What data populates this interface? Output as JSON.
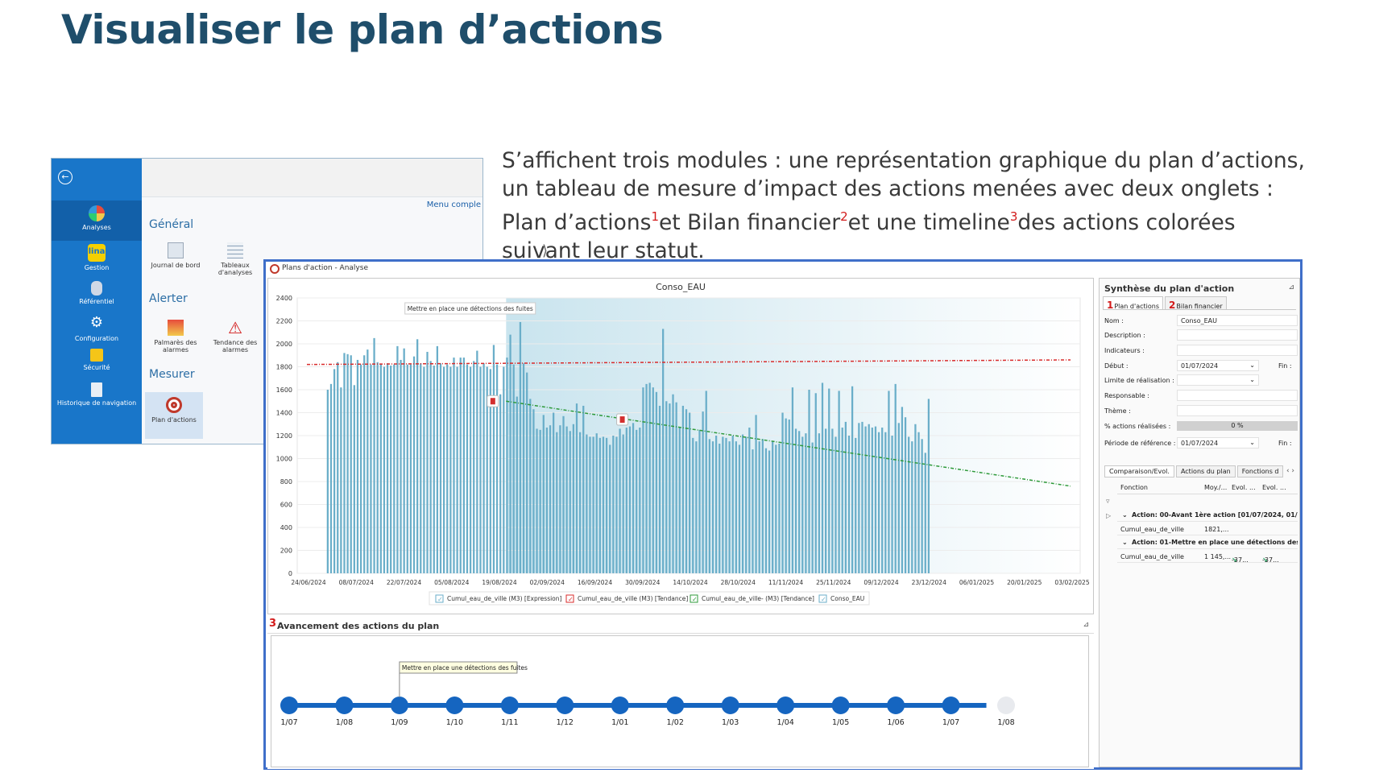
{
  "slide": {
    "title": "Visualiser le plan d’actions",
    "desc_a": "S’affichent trois modules : une représentation graphique du plan d’actions, un tableau de mesure d’impact des actions menées avec deux onglets : Plan d’actions",
    "sup1": "1",
    "desc_b": "et Bilan financier",
    "sup2": "2",
    "desc_c": "et une timeline",
    "sup3": "3",
    "desc_d": "des actions colorées suivant leur statut."
  },
  "nav": {
    "back_icon": "arrow-left-icon",
    "items": [
      {
        "label": "Analyses",
        "color": "#f2c94c"
      },
      {
        "label": "Gestion",
        "color": "#f5d000"
      },
      {
        "label": "Référentiel",
        "color": "#cfd8e6"
      },
      {
        "label": "Configuration",
        "color": "#ffffff"
      },
      {
        "label": "Sécurité",
        "color": "#f5c518"
      },
      {
        "label": "Historique de navigation",
        "color": "#e8eef5"
      }
    ],
    "menu_link": "Menu comple",
    "sections": {
      "general": "Général",
      "alerter": "Alerter",
      "mesurer": "Mesurer"
    },
    "tiles": {
      "journal": "Journal de bord",
      "tableaux": "Tableaux d'analyses",
      "palmares": "Palmarès des alarmes",
      "tendance": "Tendance des alarmes",
      "plan": "Plan d'actions"
    }
  },
  "app": {
    "window_title": "Plans d'action - Analyse"
  },
  "chart_data": {
    "type": "bar",
    "title": "Conso_EAU",
    "ylim": [
      0,
      2400
    ],
    "yticks": [
      0,
      200,
      400,
      600,
      800,
      1000,
      1200,
      1400,
      1600,
      1800,
      2000,
      2200,
      2400
    ],
    "xticks": [
      "24/06/2024",
      "08/07/2024",
      "22/07/2024",
      "05/08/2024",
      "19/08/2024",
      "02/09/2024",
      "16/09/2024",
      "30/09/2024",
      "14/10/2024",
      "28/10/2024",
      "11/11/2024",
      "25/11/2024",
      "09/12/2024",
      "23/12/2024",
      "06/01/2025",
      "20/01/2025",
      "03/02/2025"
    ],
    "series_values": [
      1600,
      1650,
      1780,
      1840,
      1620,
      1920,
      1910,
      1900,
      1640,
      1860,
      1820,
      1900,
      1950,
      1820,
      2050,
      1840,
      1820,
      1800,
      1830,
      1810,
      1820,
      1980,
      1860,
      1960,
      1820,
      1820,
      1890,
      2040,
      1830,
      1800,
      1930,
      1850,
      1810,
      1980,
      1830,
      1800,
      1820,
      1800,
      1880,
      1800,
      1880,
      1880,
      1820,
      1800,
      1850,
      1940,
      1800,
      1830,
      1800,
      1780,
      1990,
      1820,
      1560,
      1800,
      1880,
      2080,
      1820,
      1540,
      2190,
      1830,
      1750,
      1520,
      1430,
      1260,
      1250,
      1380,
      1270,
      1290,
      1400,
      1230,
      1290,
      1370,
      1280,
      1240,
      1300,
      1480,
      1230,
      1460,
      1210,
      1190,
      1190,
      1220,
      1180,
      1190,
      1180,
      1120,
      1200,
      1190,
      1260,
      1210,
      1270,
      1280,
      1310,
      1250,
      1270,
      1620,
      1650,
      1660,
      1620,
      1580,
      1460,
      2130,
      1500,
      1480,
      1560,
      1490,
      1270,
      1460,
      1430,
      1400,
      1180,
      1150,
      1250,
      1410,
      1590,
      1170,
      1150,
      1200,
      1130,
      1190,
      1180,
      1150,
      1200,
      1150,
      1120,
      1210,
      1190,
      1270,
      1080,
      1380,
      1150,
      1170,
      1090,
      1070,
      1150,
      1120,
      1130,
      1400,
      1350,
      1340,
      1620,
      1260,
      1240,
      1190,
      1220,
      1600,
      1140,
      1570,
      1220,
      1660,
      1260,
      1610,
      1260,
      1190,
      1590,
      1270,
      1320,
      1200,
      1630,
      1180,
      1310,
      1320,
      1280,
      1300,
      1270,
      1280,
      1230,
      1270,
      1230,
      1590,
      1200,
      1650,
      1310,
      1450,
      1360,
      1190,
      1150,
      1300,
      1230,
      1170,
      1050,
      1520
    ],
    "trend_before": {
      "name": "Cumul_eau_de_ville (M3) [Tendance]",
      "start": [
        0,
        1820
      ],
      "end": [
        230,
        1860
      ]
    },
    "trend_after": {
      "name": "Cumul_eau_de_ville- (M3) [Tendance]",
      "start": [
        60,
        1500
      ],
      "end": [
        230,
        760
      ]
    },
    "annotation": "Mettre en place une détections des fuites",
    "legend": [
      "Cumul_eau_de_ville (M3) [Expression]",
      "Cumul_eau_de_ville (M3) [Tendance]",
      "Cumul_eau_de_ville- (M3) [Tendance]",
      "Conso_EAU"
    ],
    "colors": {
      "bar": "#6aaec9",
      "trend_before": "#d92b2b",
      "trend_after": "#2e9a3a",
      "shade": "#c9e4ee"
    }
  },
  "synth": {
    "title": "Synthèse du plan d'action",
    "tab1_num": "1",
    "tab1": "Plan d'actions",
    "tab2_num": "2",
    "tab2": "Bilan financier",
    "fields": {
      "nom_label": "Nom :",
      "nom_value": "Conso_EAU",
      "description_label": "Description :",
      "indicateurs_label": "Indicateurs :",
      "debut_label": "Début :",
      "debut_value": "01/07/2024",
      "fin_label": "Fin :",
      "limite_label": "Limite de réalisation :",
      "responsable_label": "Responsable :",
      "theme_label": "Thème :",
      "pct_label": "% actions réalisées :",
      "pct_value": "0 %",
      "periode_label": "Période de référence :",
      "periode_value": "01/07/2024",
      "fin2_label": "Fin :"
    },
    "subtabs": [
      "Comparaison/Evol.",
      "Actions du plan",
      "Fonctions d"
    ],
    "grid_cols": [
      "Fonction",
      "Moy./...",
      "Evol. ...",
      "Evol. ..."
    ],
    "group1": "Action: 00-Avant 1ère action [01/07/2024, 01/",
    "row1": {
      "fonction": "Cumul_eau_de_ville",
      "moy": "1821,..."
    },
    "group2": "Action: 01-Mettre en place une détections des f",
    "row2": {
      "fonction": "Cumul_eau_de_ville",
      "moy": "1 145,...",
      "evol1": "-37...",
      "evol2": "-37..."
    }
  },
  "timeline": {
    "num": "3",
    "title": "Avancement des actions du plan",
    "tooltip": "Mettre en place une détections des fuites",
    "labels": [
      "1/07",
      "1/08",
      "1/09",
      "1/10",
      "1/11",
      "1/12",
      "1/01",
      "1/02",
      "1/03",
      "1/04",
      "1/05",
      "1/06",
      "1/07",
      "1/08"
    ],
    "colors": {
      "active": "#1565c0",
      "inactive": "#e8eaee"
    }
  }
}
